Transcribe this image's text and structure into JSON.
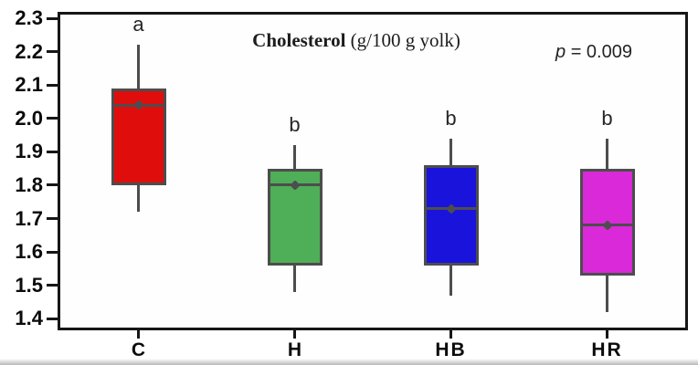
{
  "chart_data": {
    "type": "boxplot",
    "title": "Cholesterol (g/100 g yolk)",
    "title_parts": {
      "name": "Cholesterol",
      "units": "(g/100 g yolk)"
    },
    "annotation": {
      "p_symbol": "p",
      "p_rest": "= 0.009",
      "text": "p = 0.009"
    },
    "xlabel": "",
    "ylabel": "",
    "ylim": [
      1.4,
      2.3
    ],
    "ytick_step": 0.1,
    "ytick_labels": [
      "2.3",
      "2.2",
      "2.1",
      "2.0",
      "1.9",
      "1.8",
      "1.7",
      "1.6",
      "1.5",
      "1.4"
    ],
    "grid": false,
    "legend": false,
    "stroke_color": "#4d4d4d",
    "axis_color": "#161616",
    "categories": [
      "C",
      "H",
      "HB",
      "HR"
    ],
    "boxes": [
      {
        "category": "C",
        "significance": "a",
        "color": "#e00d0d",
        "whisker_low": 1.72,
        "q1": 1.8,
        "median": 2.04,
        "mean": 2.04,
        "q3": 2.09,
        "whisker_high": 2.22
      },
      {
        "category": "H",
        "significance": "b",
        "color": "#4fae58",
        "whisker_low": 1.48,
        "q1": 1.56,
        "median": 1.8,
        "mean": 1.8,
        "q3": 1.85,
        "whisker_high": 1.92
      },
      {
        "category": "HB",
        "significance": "b",
        "color": "#1a13dc",
        "whisker_low": 1.47,
        "q1": 1.56,
        "median": 1.73,
        "mean": 1.73,
        "q3": 1.86,
        "whisker_high": 1.94
      },
      {
        "category": "HR",
        "significance": "b",
        "color": "#d929d9",
        "whisker_low": 1.42,
        "q1": 1.53,
        "median": 1.68,
        "mean": 1.68,
        "q3": 1.85,
        "whisker_high": 1.94
      }
    ]
  }
}
